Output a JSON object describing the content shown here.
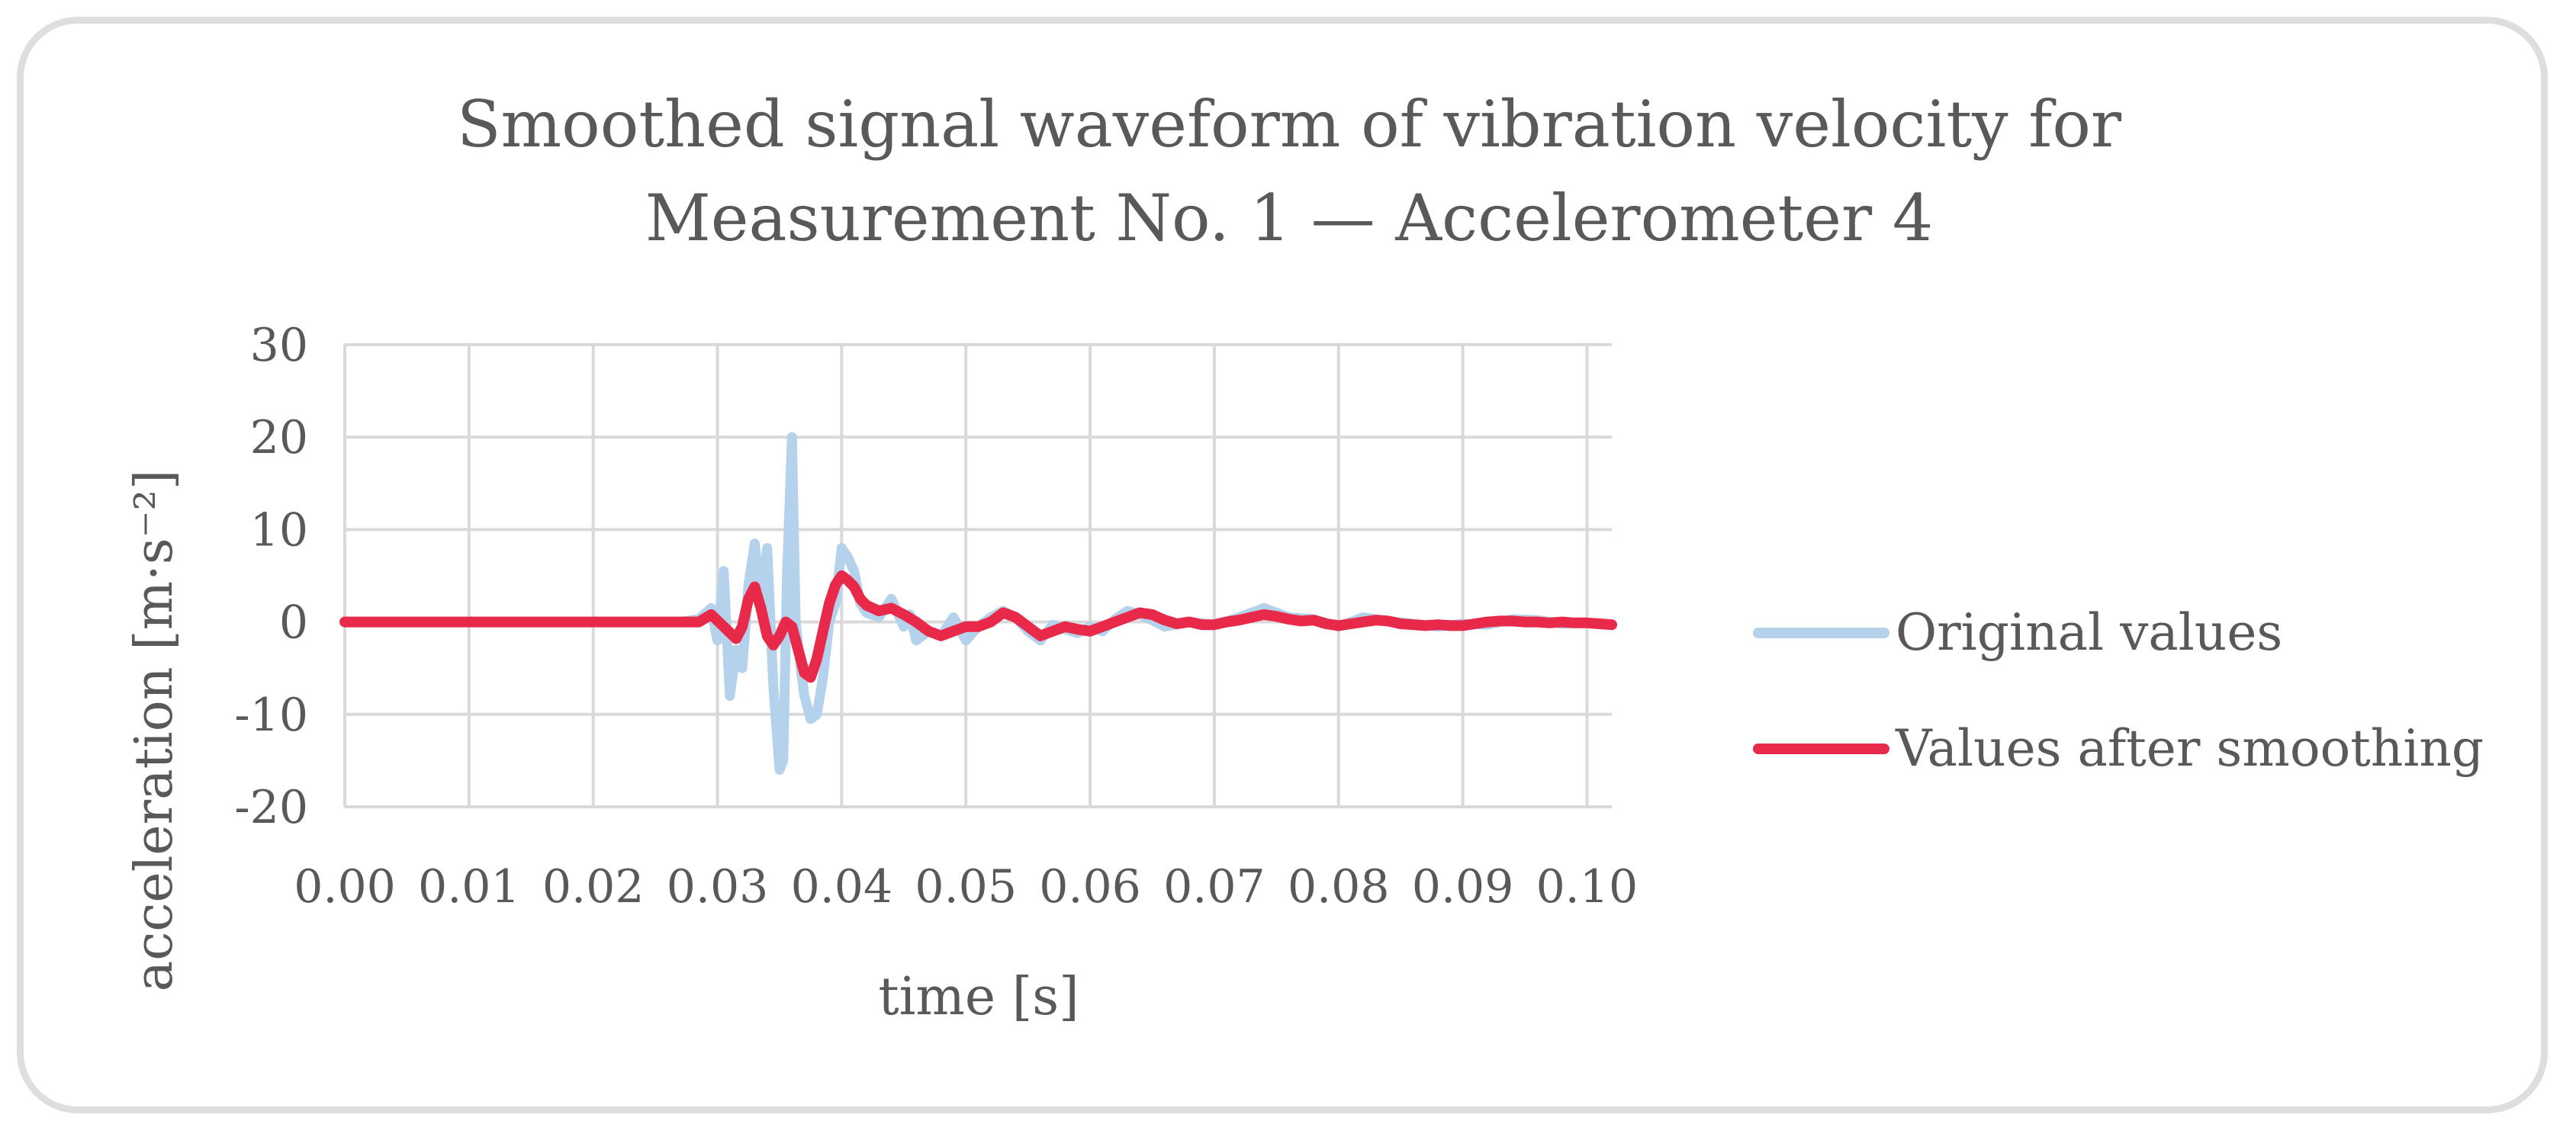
{
  "chart_data": {
    "type": "line",
    "title_lines": [
      "Smoothed signal waveform of vibration velocity for",
      "Measurement No. 1 — Accelerometer 4"
    ],
    "xlabel": "time [s]",
    "ylabel": "acceleration [m·s⁻²]",
    "xlim": [
      0,
      0.102
    ],
    "ylim": [
      -20,
      30
    ],
    "xticks": [
      0.0,
      0.01,
      0.02,
      0.03,
      0.04,
      0.05,
      0.06,
      0.07,
      0.08,
      0.09,
      0.1
    ],
    "xtick_labels": [
      "0.00",
      "0.01",
      "0.02",
      "0.03",
      "0.04",
      "0.05",
      "0.06",
      "0.07",
      "0.08",
      "0.09",
      "0.10"
    ],
    "yticks": [
      -20,
      -10,
      0,
      10,
      20,
      30
    ],
    "ytick_labels": [
      "-20",
      "-10",
      "0",
      "10",
      "20",
      "30"
    ],
    "grid": true,
    "legend_position": "right",
    "series": [
      {
        "name": "Original values",
        "color": "#b4d2ec",
        "x": [
          0.0,
          0.027,
          0.0285,
          0.0295,
          0.03,
          0.0305,
          0.031,
          0.0315,
          0.032,
          0.0325,
          0.033,
          0.0335,
          0.034,
          0.0345,
          0.035,
          0.0353,
          0.0356,
          0.036,
          0.0363,
          0.0367,
          0.037,
          0.0375,
          0.038,
          0.0385,
          0.039,
          0.0395,
          0.04,
          0.0405,
          0.041,
          0.0415,
          0.042,
          0.043,
          0.044,
          0.045,
          0.0455,
          0.046,
          0.047,
          0.048,
          0.049,
          0.05,
          0.051,
          0.052,
          0.053,
          0.054,
          0.055,
          0.056,
          0.057,
          0.058,
          0.059,
          0.06,
          0.061,
          0.062,
          0.063,
          0.064,
          0.065,
          0.066,
          0.068,
          0.07,
          0.072,
          0.074,
          0.076,
          0.078,
          0.08,
          0.082,
          0.084,
          0.086,
          0.088,
          0.09,
          0.092,
          0.094,
          0.096,
          0.098,
          0.1,
          0.102
        ],
        "values": [
          0,
          0,
          0.3,
          1.5,
          -2,
          5.5,
          -8,
          -3,
          -5,
          4,
          8.5,
          2,
          8,
          -7,
          -16,
          -15,
          5,
          20,
          0,
          -5,
          -8,
          -10.5,
          -10,
          -6,
          0,
          2,
          8,
          7,
          5.5,
          2,
          1,
          0.5,
          2.5,
          -0.5,
          0.8,
          -2,
          -1,
          -1.5,
          0.5,
          -2,
          -0.5,
          0.5,
          1.2,
          0.5,
          -1,
          -2,
          -0.3,
          -0.8,
          -1.2,
          -0.5,
          -1,
          0.3,
          1.2,
          0.8,
          0.2,
          -0.5,
          0,
          -0.3,
          0.5,
          1.5,
          0.5,
          0.3,
          -0.5,
          0.5,
          0.1,
          -0.2,
          -0.5,
          -0.2,
          -0.3,
          0.3,
          0.2,
          -0.2,
          -0.1,
          -0.3
        ]
      },
      {
        "name": "Values after smoothing",
        "color": "#e8294a",
        "x": [
          0.0,
          0.027,
          0.0285,
          0.0295,
          0.0305,
          0.0315,
          0.032,
          0.0325,
          0.033,
          0.0335,
          0.034,
          0.0345,
          0.035,
          0.0355,
          0.036,
          0.0365,
          0.037,
          0.0375,
          0.038,
          0.0385,
          0.039,
          0.0395,
          0.04,
          0.0405,
          0.041,
          0.0415,
          0.042,
          0.0425,
          0.043,
          0.044,
          0.045,
          0.046,
          0.047,
          0.048,
          0.049,
          0.05,
          0.051,
          0.052,
          0.053,
          0.054,
          0.055,
          0.056,
          0.057,
          0.058,
          0.059,
          0.06,
          0.061,
          0.062,
          0.063,
          0.064,
          0.065,
          0.066,
          0.067,
          0.068,
          0.069,
          0.07,
          0.071,
          0.072,
          0.073,
          0.074,
          0.075,
          0.076,
          0.077,
          0.078,
          0.079,
          0.08,
          0.081,
          0.082,
          0.083,
          0.084,
          0.085,
          0.086,
          0.087,
          0.088,
          0.089,
          0.09,
          0.091,
          0.092,
          0.093,
          0.094,
          0.095,
          0.096,
          0.097,
          0.098,
          0.099,
          0.1,
          0.101,
          0.102
        ],
        "values": [
          0,
          0,
          0,
          0.8,
          -0.5,
          -1.8,
          -0.5,
          2.5,
          3.8,
          1.5,
          -1.5,
          -2.5,
          -1.5,
          0,
          -0.5,
          -3,
          -5.5,
          -6,
          -4,
          -1,
          2,
          4,
          5,
          4.5,
          3.8,
          2.5,
          1.8,
          1.5,
          1.2,
          1.5,
          0.8,
          0,
          -1,
          -1.5,
          -1,
          -0.5,
          -0.5,
          0,
          1,
          0.5,
          -0.5,
          -1.5,
          -1,
          -0.5,
          -0.8,
          -1,
          -0.5,
          0,
          0.5,
          1,
          0.8,
          0.2,
          -0.2,
          0,
          -0.3,
          -0.3,
          0,
          0.2,
          0.5,
          0.8,
          0.6,
          0.3,
          0.1,
          0.2,
          -0.2,
          -0.4,
          -0.2,
          0,
          0.2,
          0.1,
          -0.2,
          -0.3,
          -0.4,
          -0.3,
          -0.4,
          -0.4,
          -0.2,
          0,
          0.1,
          0.1,
          0,
          0,
          -0.1,
          0,
          -0.1,
          -0.1,
          -0.2,
          -0.3
        ]
      }
    ]
  }
}
